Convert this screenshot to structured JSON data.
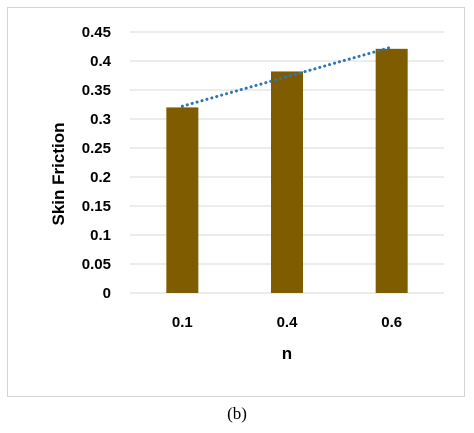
{
  "chart_data": {
    "type": "bar",
    "categories": [
      "0.1",
      "0.4",
      "0.6"
    ],
    "values": [
      0.32,
      0.382,
      0.421
    ],
    "xlabel": "n",
    "ylabel": "Skin Friction",
    "ylim": [
      0,
      0.45
    ],
    "yticks": [
      "0",
      "0.05",
      "0.1",
      "0.15",
      "0.2",
      "0.25",
      "0.3",
      "0.35",
      "0.4",
      "0.45"
    ],
    "grid": true,
    "trendline": {
      "style": "dotted",
      "x": [
        "0.1",
        "0.6"
      ],
      "y": [
        0.322,
        0.424
      ]
    },
    "colors": {
      "bar": "#7f5c00",
      "grid": "#d9d9d9",
      "trendline": "#2e75b6"
    }
  },
  "caption": "(b)"
}
